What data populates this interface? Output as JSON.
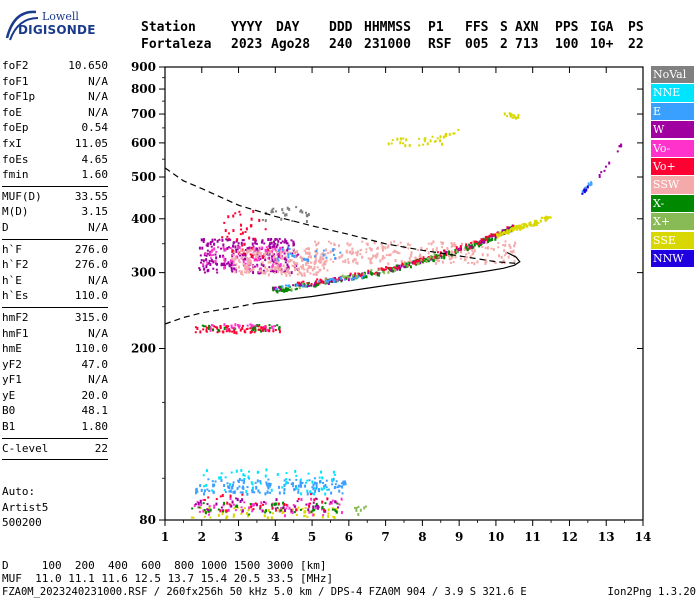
{
  "brand": {
    "top": "Lowell",
    "main": "DIGISONDE"
  },
  "header": {
    "labels": [
      "Station",
      "YYYY",
      "DAY",
      "DDD",
      "HHMMSS",
      "P1",
      "FFS",
      "S",
      "AXN",
      "PPS",
      "IGA",
      "PS"
    ],
    "values": [
      "Fortaleza",
      "2023",
      "Ago28",
      "240",
      "231000",
      "RSF",
      "005",
      "2",
      "713",
      "100",
      "10+",
      "22"
    ]
  },
  "params": {
    "group1": [
      {
        "k": "foF2",
        "v": "10.650"
      },
      {
        "k": "foF1",
        "v": "N/A"
      },
      {
        "k": "foF1p",
        "v": "N/A"
      },
      {
        "k": "foE",
        "v": "N/A"
      },
      {
        "k": "foEp",
        "v": "0.54"
      },
      {
        "k": "fxI",
        "v": "11.05"
      },
      {
        "k": "foEs",
        "v": "4.65"
      },
      {
        "k": "fmin",
        "v": "1.60"
      }
    ],
    "group2": [
      {
        "k": "MUF(D)",
        "v": "33.55"
      },
      {
        "k": "M(D)",
        "v": "3.15"
      },
      {
        "k": "D",
        "v": "N/A"
      }
    ],
    "group3": [
      {
        "k": "h`F",
        "v": "276.0"
      },
      {
        "k": "h`F2",
        "v": "276.0"
      },
      {
        "k": "h`E",
        "v": "N/A"
      },
      {
        "k": "h`Es",
        "v": "110.0"
      }
    ],
    "group4": [
      {
        "k": "hmF2",
        "v": "315.0"
      },
      {
        "k": "hmF1",
        "v": "N/A"
      },
      {
        "k": "hmE",
        "v": "110.0"
      },
      {
        "k": "yF2",
        "v": "47.0"
      },
      {
        "k": "yF1",
        "v": "N/A"
      },
      {
        "k": "yE",
        "v": "20.0"
      },
      {
        "k": "B0",
        "v": "48.1"
      },
      {
        "k": "B1",
        "v": "1.80"
      }
    ],
    "group5": [
      {
        "k": "C-level",
        "v": "22"
      }
    ]
  },
  "auto": [
    "Auto:",
    "Artist5",
    "500200"
  ],
  "legend": [
    {
      "label": "NoVal",
      "color": "#808080"
    },
    {
      "label": "NNE",
      "color": "#00e5ff"
    },
    {
      "label": "E",
      "color": "#3aa0ff"
    },
    {
      "label": "W",
      "color": "#a000a0"
    },
    {
      "label": "Vo-",
      "color": "#ff33cc"
    },
    {
      "label": "Vo+",
      "color": "#ff0033"
    },
    {
      "label": "SSW",
      "color": "#f4aaaa"
    },
    {
      "label": "X-",
      "color": "#008800"
    },
    {
      "label": "X+",
      "color": "#88bb55"
    },
    {
      "label": "SSE",
      "color": "#d8d800"
    },
    {
      "label": "NNW",
      "color": "#2000e0"
    }
  ],
  "bottom": {
    "d_line": "D     100  200  400  600  800 1000 1500 3000 [km]",
    "muf_line": "MUF  11.0 11.1 11.6 12.5 13.7 15.4 20.5 33.5 [MHz]",
    "footer": "FZA0M_2023240231000.RSF / 260fx256h 50 kHz 5.0 km / DPS-4 FZA0M 904 / 3.9 S 321.6 E",
    "version": "Ion2Png 1.3.20"
  },
  "chart_data": {
    "type": "scatter",
    "xlim": [
      1,
      14
    ],
    "ylim": [
      80,
      900
    ],
    "y_scale": "log",
    "x_ticks": [
      1,
      2,
      3,
      4,
      5,
      6,
      7,
      8,
      9,
      10,
      11,
      12,
      13,
      14
    ],
    "y_ticks": [
      80,
      200,
      300,
      400,
      500,
      600,
      700,
      800,
      900
    ],
    "grid": false,
    "legend_position": "right",
    "clusters": [
      {
        "color": "#3aa0ff",
        "x0": 1.8,
        "x1": 5.9,
        "y0": 92,
        "y1": 100,
        "n": 150
      },
      {
        "color": "#00e5ff",
        "x0": 2.0,
        "x1": 5.6,
        "y0": 92,
        "y1": 105,
        "n": 60
      },
      {
        "color": "#d8d800",
        "x0": 1.7,
        "x1": 5.9,
        "y0": 81,
        "y1": 86,
        "n": 60
      },
      {
        "color": "#ff33cc",
        "x0": 1.7,
        "x1": 5.9,
        "y0": 82,
        "y1": 90,
        "n": 60
      },
      {
        "color": "#008800",
        "x0": 1.7,
        "x1": 5.9,
        "y0": 82,
        "y1": 88,
        "n": 45
      },
      {
        "color": "#a000a0",
        "x0": 1.8,
        "x1": 5.8,
        "y0": 84,
        "y1": 90,
        "n": 40
      },
      {
        "color": "#ff0033",
        "x0": 2.0,
        "x1": 5.5,
        "y0": 84,
        "y1": 92,
        "n": 30
      },
      {
        "color": "#88bb55",
        "x0": 6.1,
        "x1": 6.8,
        "y0": 82,
        "y1": 86,
        "n": 8
      },
      {
        "color": "#ff0033",
        "x0": 1.8,
        "x1": 4.1,
        "y0": 218,
        "y1": 226,
        "n": 70
      },
      {
        "color": "#008800",
        "x0": 1.9,
        "x1": 4.1,
        "y0": 220,
        "y1": 227,
        "n": 25
      },
      {
        "color": "#ff33cc",
        "x0": 2.0,
        "x1": 4.0,
        "y0": 221,
        "y1": 228,
        "n": 25
      },
      {
        "color": "#a000a0",
        "x0": 1.9,
        "x1": 4.6,
        "y0": 300,
        "y1": 360,
        "n": 260
      },
      {
        "color": "#ff33cc",
        "x0": 2.0,
        "x1": 4.2,
        "y0": 305,
        "y1": 345,
        "n": 90
      },
      {
        "color": "#ff0033",
        "x0": 2.5,
        "x1": 3.8,
        "y0": 325,
        "y1": 420,
        "n": 40
      },
      {
        "color": "#f4aaaa",
        "x0": 2.8,
        "x1": 5.4,
        "y0": 295,
        "y1": 340,
        "n": 220
      },
      {
        "color": "#f4aaaa",
        "x0": 4.8,
        "x1": 10.5,
        "y0": 315,
        "y1": 355,
        "n": 260
      },
      {
        "color": "#3aa0ff",
        "x0": 4.0,
        "x1": 5.8,
        "y0": 320,
        "y1": 345,
        "n": 25
      },
      {
        "color": "#d8d800",
        "x0": 7.0,
        "x1": 8.6,
        "y0": 590,
        "y1": 615,
        "n": 20
      },
      {
        "color": "#d8d800",
        "x0": 10.2,
        "x1": 10.6,
        "y0": 685,
        "y1": 705,
        "n": 15
      },
      {
        "color": "#808080",
        "x0": 3.6,
        "x1": 4.9,
        "y0": 395,
        "y1": 430,
        "n": 25
      }
    ],
    "traces": [
      {
        "color": "#008800",
        "x": [
          3.9,
          4.6,
          5.3,
          6.0,
          6.8,
          7.5,
          8.2,
          8.9,
          9.5,
          10.0,
          10.5
        ],
        "y": [
          275,
          280,
          286,
          293,
          302,
          313,
          325,
          338,
          352,
          368,
          385
        ],
        "jitter": 5,
        "n": 240
      },
      {
        "color": "#a000a0",
        "x": [
          3.9,
          4.6,
          5.3,
          6.0,
          6.8,
          7.5,
          8.2,
          8.9,
          9.5,
          10.0,
          10.5
        ],
        "y": [
          276,
          281,
          287,
          294,
          303,
          314,
          326,
          339,
          353,
          369,
          386
        ],
        "jitter": 4,
        "n": 100
      },
      {
        "color": "#ff0033",
        "x": [
          4.5,
          5.3,
          6.0,
          6.8,
          7.5,
          8.2,
          8.9,
          9.5,
          10.0,
          10.5
        ],
        "y": [
          283,
          289,
          296,
          305,
          316,
          328,
          341,
          355,
          371,
          388
        ],
        "jitter": 5,
        "n": 100
      },
      {
        "color": "#3aa0ff",
        "x": [
          3.9,
          4.8,
          5.6,
          6.4
        ],
        "y": [
          276,
          283,
          290,
          298
        ],
        "jitter": 4,
        "n": 30
      },
      {
        "color": "#d8d800",
        "x": [
          10.0,
          10.6,
          11.0,
          11.5
        ],
        "y": [
          368,
          385,
          392,
          410
        ],
        "jitter": 4,
        "n": 90
      },
      {
        "color": "#88bb55",
        "x": [
          4.1,
          5.0,
          6.0,
          7.0,
          8.0,
          9.0
        ],
        "y": [
          277,
          285,
          294,
          306,
          322,
          342
        ],
        "jitter": 6,
        "n": 35
      },
      {
        "color": "#3aa0ff",
        "x": [
          12.3,
          12.6
        ],
        "y": [
          460,
          490
        ],
        "jitter": 4,
        "n": 12
      },
      {
        "color": "#2000e0",
        "x": [
          12.3,
          12.5
        ],
        "y": [
          462,
          478
        ],
        "jitter": 3,
        "n": 6
      },
      {
        "color": "#a000a0",
        "x": [
          12.7,
          13.0,
          13.4
        ],
        "y": [
          490,
          540,
          600
        ],
        "jitter": 3,
        "n": 12
      },
      {
        "color": "#d8d800",
        "x": [
          7.9,
          8.6,
          9.0
        ],
        "y": [
          610,
          628,
          645
        ],
        "jitter": 3,
        "n": 15
      }
    ],
    "profile_dashed": {
      "x": [
        1.0,
        1.5,
        2.0,
        3.0,
        4.0,
        5.0,
        6.0,
        7.0,
        8.0,
        9.0,
        10.0,
        10.6
      ],
      "y": [
        525,
        490,
        470,
        430,
        405,
        385,
        368,
        350,
        338,
        328,
        318,
        315
      ]
    },
    "profile_lower_dashed": {
      "x": [
        1.0,
        1.5,
        2.0,
        3.0,
        3.5
      ],
      "y": [
        228,
        236,
        242,
        250,
        255
      ]
    },
    "profile_solid": {
      "x": [
        3.5,
        4.0,
        5.0,
        6.0,
        7.0,
        8.0,
        9.0,
        9.7,
        10.2,
        10.5,
        10.65,
        10.55,
        10.3
      ],
      "y": [
        255,
        258,
        264,
        272,
        280,
        288,
        296,
        302,
        307,
        312,
        318,
        326,
        334
      ]
    }
  }
}
